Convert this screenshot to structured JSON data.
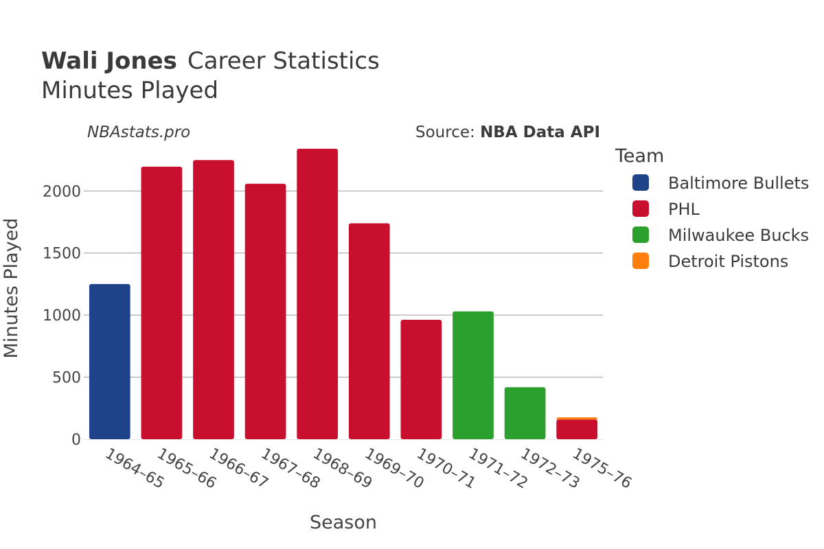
{
  "header": {
    "player": "Wali Jones",
    "title_rest": "Career Statistics",
    "subtitle": "Minutes Played",
    "watermark": "NBAstats.pro",
    "source_label": "Source: ",
    "source_value": "NBA Data API"
  },
  "chart_data": {
    "type": "bar",
    "stacked": true,
    "title": "Wali Jones Career Statistics",
    "subtitle": "Minutes Played",
    "xlabel": "Season",
    "ylabel": "Minutes Played",
    "ylim": [
      0,
      2350
    ],
    "yticks": [
      0,
      500,
      1000,
      1500,
      2000
    ],
    "categories": [
      "1964–65",
      "1965–66",
      "1966–67",
      "1967–68",
      "1968–69",
      "1969–70",
      "1970–71",
      "1971–72",
      "1972–73",
      "1975–76"
    ],
    "legend_title": "Team",
    "legend_position": "right",
    "series": [
      {
        "name": "Baltimore Bullets",
        "color": "#1f4389",
        "values": [
          1250,
          0,
          0,
          0,
          0,
          0,
          0,
          0,
          0,
          0
        ]
      },
      {
        "name": "PHL",
        "color": "#c8102e",
        "values": [
          0,
          2196,
          2249,
          2058,
          2340,
          1740,
          962,
          0,
          0,
          158
        ]
      },
      {
        "name": "Milwaukee Bucks",
        "color": "#2ca02c",
        "values": [
          0,
          0,
          0,
          0,
          0,
          0,
          0,
          1030,
          419,
          0
        ]
      },
      {
        "name": "Detroit Pistons",
        "color": "#ff7f0e",
        "values": [
          0,
          0,
          0,
          0,
          0,
          0,
          0,
          0,
          0,
          18
        ]
      }
    ]
  }
}
